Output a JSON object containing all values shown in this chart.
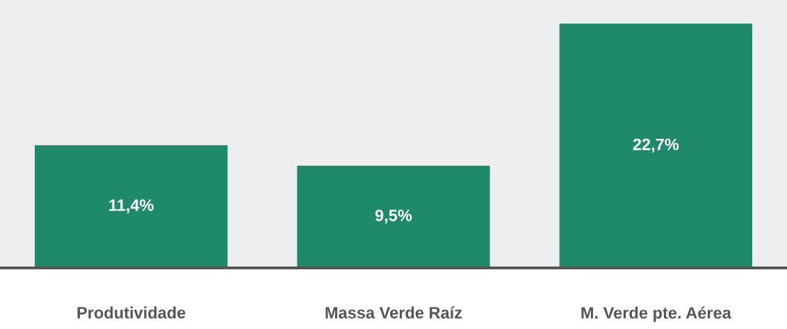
{
  "chart_data": {
    "type": "bar",
    "categories": [
      "Produtividade",
      "Massa Verde Raíz",
      "M. Verde pte. Aérea"
    ],
    "values": [
      11.4,
      9.5,
      22.7
    ],
    "value_labels": [
      "11,4%",
      "9,5%",
      "22,7%"
    ],
    "color": "#1f8a6a",
    "ylim": [
      0,
      24.9
    ],
    "tick_labels": "x",
    "grid": false,
    "legend": false
  }
}
